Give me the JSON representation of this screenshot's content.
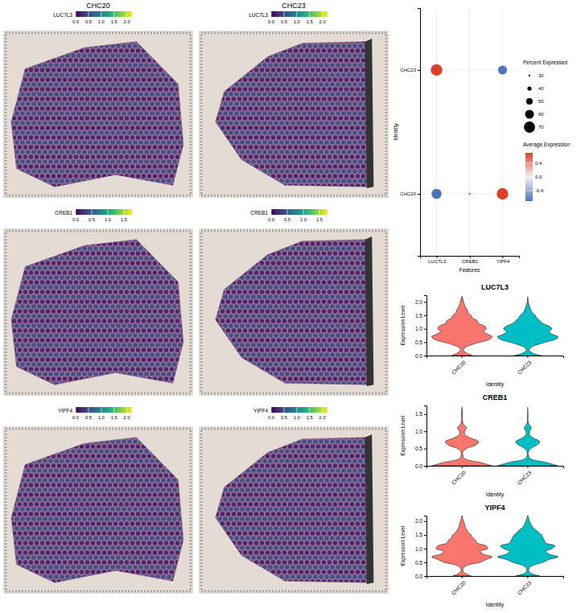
{
  "chart_data": [
    {
      "type": "spatial",
      "title": "CHC20",
      "gene": "LUC7L3",
      "colorbar_lim": [
        0,
        2.2
      ],
      "colorbar_ticks": [
        {
          "value": 0,
          "label": "0.0"
        },
        0.5,
        {
          "value": 1,
          "label": "1.0"
        },
        1.5,
        {
          "value": 2,
          "label": "2.0"
        }
      ]
    },
    {
      "type": "spatial",
      "title": "CHC23",
      "gene": "LUC7L3",
      "colorbar_lim": [
        0,
        2.2
      ],
      "colorbar_ticks": [
        {
          "value": 0,
          "label": "0.0"
        },
        0.5,
        {
          "value": 1,
          "label": "1.0"
        },
        1.5,
        {
          "value": 2,
          "label": "2.0"
        }
      ]
    },
    {
      "type": "spatial",
      "gene": "CREB1",
      "colorbar_lim": [
        0,
        1.75
      ],
      "colorbar_ticks": [
        {
          "value": 0,
          "label": "0.0"
        },
        0.5,
        {
          "value": 1,
          "label": "1.0"
        },
        1.5
      ]
    },
    {
      "type": "spatial",
      "gene": "CREB1",
      "colorbar_lim": [
        0,
        1.75
      ],
      "colorbar_ticks": [
        {
          "value": 0,
          "label": "0.0"
        },
        0.5,
        {
          "value": 1,
          "label": "1.0"
        },
        1.5
      ]
    },
    {
      "type": "spatial",
      "gene": "YIPF4",
      "colorbar_lim": [
        0,
        2.2
      ],
      "colorbar_ticks": [
        {
          "value": 0,
          "label": "0.0"
        },
        0.5,
        {
          "value": 1,
          "label": "1.0"
        },
        1.5,
        {
          "value": 2,
          "label": "2.0"
        }
      ]
    },
    {
      "type": "spatial",
      "gene": "YIPF4",
      "colorbar_lim": [
        0,
        2.2
      ],
      "colorbar_ticks": [
        {
          "value": 0,
          "label": "0.0"
        },
        0.5,
        {
          "value": 1,
          "label": "1.0"
        },
        1.5,
        {
          "value": 2,
          "label": "2.0"
        }
      ]
    },
    {
      "type": "dot",
      "x_label": "Features",
      "y_label": "Identity",
      "categories": [
        "LUC7L3",
        "CREB1",
        "YIPF4"
      ],
      "grid": true,
      "series": [
        {
          "name": "CHC20",
          "percent": [
            65,
            30,
            72
          ],
          "average": [
            -0.707,
            0.707,
            0.707
          ]
        },
        {
          "name": "CHC23",
          "percent": [
            72,
            22,
            60
          ],
          "average": [
            0.707,
            -0.707,
            -0.707
          ]
        }
      ],
      "size_title": "Percent Expressed",
      "size_lim": [
        22,
        74
      ],
      "size_ticks": [
        30,
        40,
        50,
        60,
        70
      ],
      "color_title": "Average Expression",
      "color_lim": [
        -0.707,
        0.707
      ],
      "color_ticks": [
        -0.4,
        {
          "value": 0,
          "label": "0.0"
        },
        0.4
      ]
    },
    {
      "type": "violin",
      "title": "LUC7L3",
      "x_label": "Identity",
      "y_label": "Expression Level",
      "categories": [
        "CHC20",
        "CHC23"
      ],
      "ylim": [
        0,
        2.25
      ],
      "yticks": [
        {
          "value": 0,
          "label": "0.0"
        },
        0.5,
        {
          "value": 1,
          "label": "1.0"
        },
        1.5,
        {
          "value": 2,
          "label": "2.0"
        }
      ],
      "y": [
        0,
        0.1,
        0.2,
        0.3,
        0.4,
        0.5,
        0.6,
        0.7,
        0.8,
        0.9,
        1.0,
        1.1,
        1.2,
        1.3,
        1.4,
        1.5,
        1.6,
        1.7,
        1.8,
        1.9,
        2.0,
        2.1,
        2.2
      ],
      "series": [
        {
          "color": "#F8766D",
          "density": [
            0.35,
            0.15,
            0.05,
            0.1,
            0.3,
            0.6,
            0.9,
            1.0,
            0.85,
            0.7,
            0.8,
            0.75,
            0.55,
            0.5,
            0.35,
            0.3,
            0.2,
            0.18,
            0.12,
            0.08,
            0.05,
            0.03,
            0.01
          ]
        },
        {
          "color": "#00BFC4",
          "density": [
            0.45,
            0.15,
            0.05,
            0.1,
            0.3,
            0.6,
            0.9,
            1.0,
            0.8,
            0.7,
            0.8,
            0.7,
            0.5,
            0.4,
            0.3,
            0.25,
            0.15,
            0.1,
            0.07,
            0.04,
            0.02,
            0.01,
            0
          ]
        }
      ]
    },
    {
      "type": "violin",
      "title": "CREB1",
      "x_label": "Identity",
      "y_label": "Expression Level",
      "categories": [
        "CHC20",
        "CHC23"
      ],
      "ylim": [
        0,
        1.75
      ],
      "yticks": [
        {
          "value": 0,
          "label": "0.0"
        },
        0.5,
        {
          "value": 1,
          "label": "1.0"
        },
        1.5
      ],
      "y": [
        0,
        0.1,
        0.2,
        0.3,
        0.4,
        0.5,
        0.6,
        0.7,
        0.8,
        0.9,
        1.0,
        1.1,
        1.2,
        1.3,
        1.4,
        1.5,
        1.6,
        1.7
      ],
      "series": [
        {
          "color": "#F8766D",
          "density": [
            1.0,
            0.6,
            0.1,
            0.03,
            0.03,
            0.15,
            0.45,
            0.55,
            0.3,
            0.1,
            0.08,
            0.15,
            0.05,
            0.02,
            0.01,
            0.02,
            0.01,
            0
          ]
        },
        {
          "color": "#00BFC4",
          "density": [
            1.0,
            0.6,
            0.1,
            0.02,
            0.02,
            0.1,
            0.3,
            0.4,
            0.2,
            0.06,
            0.06,
            0.12,
            0.04,
            0.01,
            0.01,
            0.01,
            0,
            0
          ]
        }
      ]
    },
    {
      "type": "violin",
      "title": "YIPF4",
      "x_label": "Identity",
      "y_label": "Expression Level",
      "categories": [
        "CHC20",
        "CHC23"
      ],
      "ylim": [
        0,
        2.2
      ],
      "yticks": [
        {
          "value": 0,
          "label": "0.0"
        },
        0.5,
        {
          "value": 1,
          "label": "1.0"
        },
        1.5,
        {
          "value": 2,
          "label": "2.0"
        }
      ],
      "y": [
        0,
        0.1,
        0.2,
        0.3,
        0.4,
        0.5,
        0.6,
        0.7,
        0.8,
        0.9,
        1.0,
        1.1,
        1.2,
        1.3,
        1.4,
        1.5,
        1.6,
        1.7,
        1.8,
        1.9,
        2.0,
        2.1,
        2.2
      ],
      "series": [
        {
          "color": "#F8766D",
          "density": [
            0.3,
            0.1,
            0.03,
            0.05,
            0.2,
            0.6,
            0.8,
            1.0,
            0.7,
            0.6,
            0.85,
            0.8,
            0.5,
            0.45,
            0.35,
            0.3,
            0.2,
            0.15,
            0.1,
            0.08,
            0.05,
            0.02,
            0.01
          ]
        },
        {
          "color": "#00BFC4",
          "density": [
            0.4,
            0.1,
            0.03,
            0.05,
            0.2,
            0.5,
            0.7,
            1.0,
            0.7,
            0.6,
            0.8,
            0.9,
            0.6,
            0.55,
            0.5,
            0.45,
            0.35,
            0.25,
            0.15,
            0.1,
            0.06,
            0.03,
            0.01
          ]
        }
      ]
    }
  ]
}
